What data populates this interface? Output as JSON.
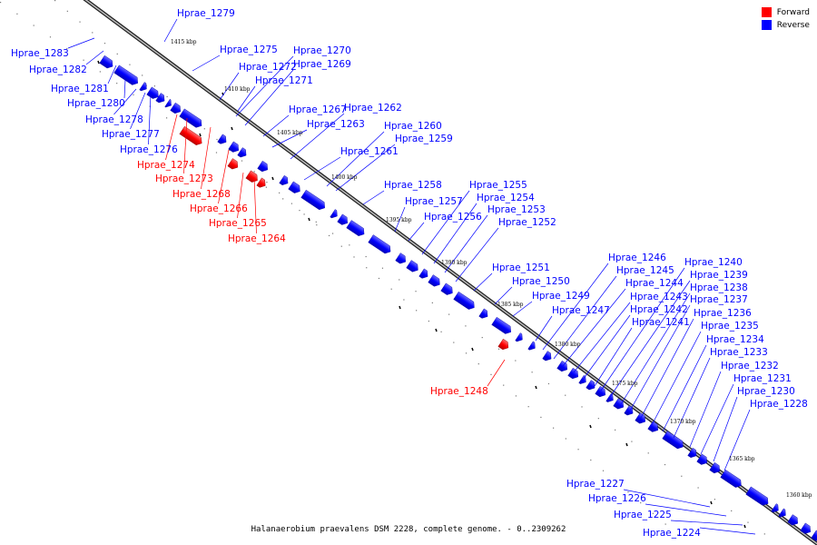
{
  "caption": "Halanaerobium praevalens DSM 2228, complete genome. - 0..2309262",
  "legend": [
    {
      "label": "Forward",
      "color": "#ff0000"
    },
    {
      "label": "Reverse",
      "color": "#0000ff"
    }
  ],
  "ticks": [
    "1415 kbp",
    "1410 kbp",
    "1405 kbp",
    "1400 kbp",
    "1395 kbp",
    "1390 kbp",
    "1385 kbp",
    "1380 kbp",
    "1375 kbp",
    "1370 kbp",
    "1365 kbp",
    "1360 kbp"
  ],
  "colors": {
    "forward": "#ff0000",
    "reverse": "#0000ff"
  },
  "genes": [
    {
      "name": "Hprae_1279",
      "strand": "reverse"
    },
    {
      "name": "Hprae_1283",
      "strand": "reverse"
    },
    {
      "name": "Hprae_1282",
      "strand": "reverse"
    },
    {
      "name": "Hprae_1281",
      "strand": "reverse"
    },
    {
      "name": "Hprae_1280",
      "strand": "reverse"
    },
    {
      "name": "Hprae_1278",
      "strand": "reverse"
    },
    {
      "name": "Hprae_1277",
      "strand": "reverse"
    },
    {
      "name": "Hprae_1276",
      "strand": "reverse"
    },
    {
      "name": "Hprae_1275",
      "strand": "reverse"
    },
    {
      "name": "Hprae_1272",
      "strand": "reverse"
    },
    {
      "name": "Hprae_1271",
      "strand": "reverse"
    },
    {
      "name": "Hprae_1270",
      "strand": "reverse"
    },
    {
      "name": "Hprae_1269",
      "strand": "reverse"
    },
    {
      "name": "Hprae_1267",
      "strand": "reverse"
    },
    {
      "name": "Hprae_1262",
      "strand": "reverse"
    },
    {
      "name": "Hprae_1263",
      "strand": "reverse"
    },
    {
      "name": "Hprae_1260",
      "strand": "reverse"
    },
    {
      "name": "Hprae_1259",
      "strand": "reverse"
    },
    {
      "name": "Hprae_1261",
      "strand": "reverse"
    },
    {
      "name": "Hprae_1258",
      "strand": "reverse"
    },
    {
      "name": "Hprae_1257",
      "strand": "reverse"
    },
    {
      "name": "Hprae_1256",
      "strand": "reverse"
    },
    {
      "name": "Hprae_1255",
      "strand": "reverse"
    },
    {
      "name": "Hprae_1254",
      "strand": "reverse"
    },
    {
      "name": "Hprae_1253",
      "strand": "reverse"
    },
    {
      "name": "Hprae_1252",
      "strand": "reverse"
    },
    {
      "name": "Hprae_1251",
      "strand": "reverse"
    },
    {
      "name": "Hprae_1250",
      "strand": "reverse"
    },
    {
      "name": "Hprae_1249",
      "strand": "reverse"
    },
    {
      "name": "Hprae_1247",
      "strand": "reverse"
    },
    {
      "name": "Hprae_1246",
      "strand": "reverse"
    },
    {
      "name": "Hprae_1245",
      "strand": "reverse"
    },
    {
      "name": "Hprae_1244",
      "strand": "reverse"
    },
    {
      "name": "Hprae_1243",
      "strand": "reverse"
    },
    {
      "name": "Hprae_1242",
      "strand": "reverse"
    },
    {
      "name": "Hprae_1241",
      "strand": "reverse"
    },
    {
      "name": "Hprae_1240",
      "strand": "reverse"
    },
    {
      "name": "Hprae_1239",
      "strand": "reverse"
    },
    {
      "name": "Hprae_1238",
      "strand": "reverse"
    },
    {
      "name": "Hprae_1237",
      "strand": "reverse"
    },
    {
      "name": "Hprae_1236",
      "strand": "reverse"
    },
    {
      "name": "Hprae_1235",
      "strand": "reverse"
    },
    {
      "name": "Hprae_1234",
      "strand": "reverse"
    },
    {
      "name": "Hprae_1233",
      "strand": "reverse"
    },
    {
      "name": "Hprae_1232",
      "strand": "reverse"
    },
    {
      "name": "Hprae_1231",
      "strand": "reverse"
    },
    {
      "name": "Hprae_1230",
      "strand": "reverse"
    },
    {
      "name": "Hprae_1228",
      "strand": "reverse"
    },
    {
      "name": "Hprae_1227",
      "strand": "reverse"
    },
    {
      "name": "Hprae_1226",
      "strand": "reverse"
    },
    {
      "name": "Hprae_1225",
      "strand": "reverse"
    },
    {
      "name": "Hprae_1224",
      "strand": "reverse"
    },
    {
      "name": "Hprae_1274",
      "strand": "forward"
    },
    {
      "name": "Hprae_1273",
      "strand": "forward"
    },
    {
      "name": "Hprae_1268",
      "strand": "forward"
    },
    {
      "name": "Hprae_1266",
      "strand": "forward"
    },
    {
      "name": "Hprae_1265",
      "strand": "forward"
    },
    {
      "name": "Hprae_1264",
      "strand": "forward"
    },
    {
      "name": "Hprae_1248",
      "strand": "forward"
    }
  ]
}
